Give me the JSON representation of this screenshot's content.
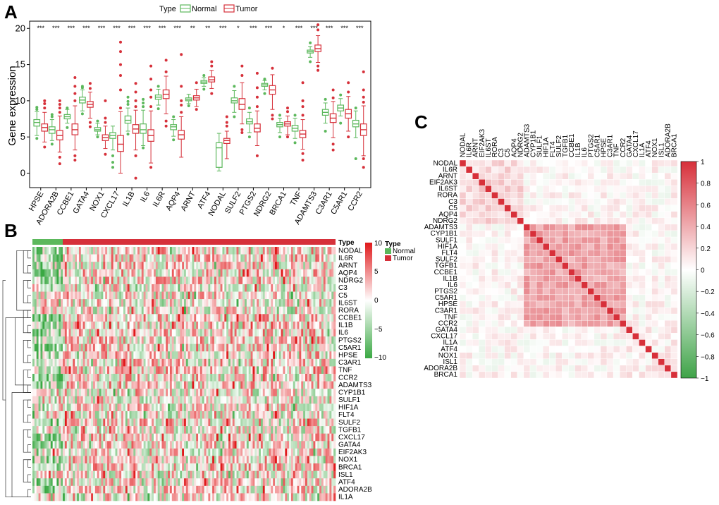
{
  "panels": {
    "a": "A",
    "b": "B",
    "c": "C"
  },
  "colors": {
    "normal": "#5cb85c",
    "tumor": "#d6303a",
    "red_text": "#e0191b",
    "black_text": "#000000"
  },
  "chart_data": [
    {
      "type": "box",
      "id": "A",
      "ylabel": "Gene expression",
      "ylim": [
        -2,
        21
      ],
      "yticks": [
        0,
        5,
        10,
        15,
        20
      ],
      "legend": {
        "title": "Type",
        "items": [
          "Normal",
          "Tumor"
        ],
        "position": "top"
      },
      "genes": [
        "HPSE",
        "ADORA2B",
        "CCBE1",
        "GATA4",
        "NOX1",
        "CXCL17",
        "IL1B",
        "IL6",
        "IL6R",
        "AQP4",
        "ARNT",
        "ATF4",
        "NODAL",
        "SULF2",
        "PTGS2",
        "NDRG2",
        "BRCA1",
        "TNF",
        "ADAMTS3",
        "C3AR1",
        "C5AR1",
        "CCR2"
      ],
      "significance": [
        "***",
        "***",
        "***",
        "***",
        "***",
        "***",
        "***",
        "***",
        "***",
        "***",
        "**",
        "**",
        "***",
        "*",
        "***",
        "***",
        "*",
        "***",
        "***",
        "***",
        "***",
        "***"
      ],
      "normal": [
        {
          "min": 5.2,
          "q1": 6.5,
          "median": 7.0,
          "q3": 7.4,
          "max": 8.5
        },
        {
          "min": 4.5,
          "q1": 5.5,
          "median": 6.0,
          "q3": 6.4,
          "max": 7.4
        },
        {
          "min": 6.9,
          "q1": 7.5,
          "median": 7.8,
          "q3": 8.1,
          "max": 8.8
        },
        {
          "min": 8.6,
          "q1": 9.7,
          "median": 10.1,
          "q3": 10.5,
          "max": 11.5
        },
        {
          "min": 5.3,
          "q1": 5.8,
          "median": 6.0,
          "q3": 6.3,
          "max": 6.9
        },
        {
          "min": 3.2,
          "q1": 4.8,
          "median": 5.2,
          "q3": 5.6,
          "max": 6.5
        },
        {
          "min": 5.8,
          "q1": 6.9,
          "median": 7.3,
          "q3": 7.9,
          "max": 9.0
        },
        {
          "min": 3.8,
          "q1": 5.5,
          "median": 6.0,
          "q3": 6.8,
          "max": 8.7
        },
        {
          "min": 9.4,
          "q1": 10.2,
          "median": 10.5,
          "q3": 10.8,
          "max": 11.6
        },
        {
          "min": 5.1,
          "q1": 6.0,
          "median": 6.4,
          "q3": 6.7,
          "max": 7.4
        },
        {
          "min": 9.6,
          "q1": 10.0,
          "median": 10.2,
          "q3": 10.4,
          "max": 10.9
        },
        {
          "min": 12.0,
          "q1": 12.4,
          "median": 12.6,
          "q3": 12.8,
          "max": 13.2
        },
        {
          "min": 0.3,
          "q1": 0.8,
          "median": 3.5,
          "q3": 4.2,
          "max": 5.5
        },
        {
          "min": 8.4,
          "q1": 9.7,
          "median": 10.0,
          "q3": 10.4,
          "max": 11.4
        },
        {
          "min": 5.6,
          "q1": 6.8,
          "median": 7.1,
          "q3": 7.5,
          "max": 8.4
        },
        {
          "min": 11.5,
          "q1": 12.0,
          "median": 12.2,
          "q3": 12.4,
          "max": 12.8
        },
        {
          "min": 5.6,
          "q1": 6.4,
          "median": 6.7,
          "q3": 7.0,
          "max": 7.6
        },
        {
          "min": 4.8,
          "q1": 5.8,
          "median": 6.2,
          "q3": 6.6,
          "max": 7.6
        },
        {
          "min": 16.0,
          "q1": 16.6,
          "median": 16.8,
          "q3": 17.0,
          "max": 17.5
        },
        {
          "min": 6.9,
          "q1": 8.0,
          "median": 8.4,
          "q3": 8.8,
          "max": 9.7
        },
        {
          "min": 7.9,
          "q1": 8.6,
          "median": 9.0,
          "q3": 9.4,
          "max": 10.3
        },
        {
          "min": 4.9,
          "q1": 6.4,
          "median": 6.8,
          "q3": 7.3,
          "max": 8.6
        }
      ],
      "tumor": [
        {
          "min": 4.3,
          "q1": 5.8,
          "median": 6.3,
          "q3": 6.8,
          "max": 8.4
        },
        {
          "min": 2.9,
          "q1": 4.6,
          "median": 5.2,
          "q3": 5.9,
          "max": 7.9
        },
        {
          "min": 3.2,
          "q1": 5.3,
          "median": 6.0,
          "q3": 6.8,
          "max": 9.3
        },
        {
          "min": 7.6,
          "q1": 9.1,
          "median": 9.5,
          "q3": 9.9,
          "max": 11.2
        },
        {
          "min": 3.4,
          "q1": 4.5,
          "median": 4.9,
          "q3": 5.3,
          "max": 6.5
        },
        {
          "min": 0.0,
          "q1": 3.0,
          "median": 4.0,
          "q3": 5.2,
          "max": 8.5
        },
        {
          "min": 3.2,
          "q1": 5.5,
          "median": 6.1,
          "q3": 6.7,
          "max": 8.7
        },
        {
          "min": 1.4,
          "q1": 4.4,
          "median": 5.2,
          "q3": 6.0,
          "max": 8.6
        },
        {
          "min": 8.2,
          "q1": 10.3,
          "median": 10.9,
          "q3": 11.5,
          "max": 13.4
        },
        {
          "min": 2.2,
          "q1": 4.7,
          "median": 5.3,
          "q3": 5.9,
          "max": 7.8
        },
        {
          "min": 9.2,
          "q1": 10.1,
          "median": 10.4,
          "q3": 10.7,
          "max": 11.6
        },
        {
          "min": 11.7,
          "q1": 12.6,
          "median": 12.9,
          "q3": 13.3,
          "max": 14.2
        },
        {
          "min": 2.0,
          "q1": 4.1,
          "median": 4.5,
          "q3": 4.8,
          "max": 5.8
        },
        {
          "min": 6.8,
          "q1": 8.8,
          "median": 9.5,
          "q3": 10.3,
          "max": 12.5
        },
        {
          "min": 3.8,
          "q1": 5.7,
          "median": 6.2,
          "q3": 6.8,
          "max": 8.6
        },
        {
          "min": 8.8,
          "q1": 10.9,
          "median": 11.5,
          "q3": 12.1,
          "max": 13.6
        },
        {
          "min": 5.3,
          "q1": 6.5,
          "median": 6.8,
          "q3": 7.1,
          "max": 7.9
        },
        {
          "min": 3.3,
          "q1": 4.9,
          "median": 5.4,
          "q3": 5.9,
          "max": 7.4
        },
        {
          "min": 15.3,
          "q1": 16.8,
          "median": 17.2,
          "q3": 17.7,
          "max": 19.0
        },
        {
          "min": 4.9,
          "q1": 7.0,
          "median": 7.6,
          "q3": 8.2,
          "max": 9.9
        },
        {
          "min": 5.8,
          "q1": 7.6,
          "median": 8.2,
          "q3": 8.8,
          "max": 10.6
        },
        {
          "min": 2.4,
          "q1": 5.2,
          "median": 6.0,
          "q3": 6.8,
          "max": 9.3
        }
      ],
      "normal_outliers": [
        [
          8.8,
          9.1,
          4.8
        ],
        [
          7.8,
          8.1,
          4.0
        ],
        [
          9.0,
          6.3
        ],
        [
          12.0,
          11.8,
          8.2
        ],
        [
          7.2,
          5.0
        ],
        [
          2.4,
          1.5,
          0.8
        ],
        [
          9.5,
          9.9,
          10.5,
          5.4
        ],
        [
          9.2,
          9.7,
          10.2,
          3.5
        ],
        [
          12.0,
          8.9
        ],
        [
          7.8,
          4.6
        ],
        [
          9.3
        ],
        [
          13.5,
          11.6
        ],
        [],
        [
          7.8,
          12.0
        ],
        [
          9.0,
          5.0
        ],
        [
          13.0,
          11.0
        ],
        [
          8.0,
          5.0
        ],
        [
          8.0,
          4.2
        ],
        [
          15.4,
          18.0
        ],
        [
          10.2,
          5.8
        ],
        [
          10.8,
          6.9
        ],
        [
          2.0,
          9.0
        ]
      ],
      "tumor_outliers": [
        [
          9.0,
          9.6,
          10.0,
          3.6
        ],
        [
          8.4,
          9.0,
          9.5,
          10.0,
          2.2,
          1.3
        ],
        [
          10.0,
          11.0,
          12.0,
          13.2,
          2.4,
          1.8
        ],
        [
          11.7,
          12.4,
          7.0,
          6.4
        ],
        [
          7.0,
          7.6,
          10.0,
          2.6
        ],
        [
          9.0,
          11.5,
          13.5,
          15.0,
          16.8,
          18.1
        ],
        [
          9.2,
          10.0,
          11.2,
          12.4,
          2.4,
          -0.7
        ],
        [
          9.2,
          10.5,
          11.5,
          13.0,
          14.8,
          0.8
        ],
        [
          14.0,
          15.6,
          7.2,
          6.5
        ],
        [
          8.4,
          9.4,
          10.0,
          12.0,
          16.4
        ],
        [
          12.5,
          8.8
        ],
        [
          14.8,
          15.4,
          11.0
        ],
        [
          6.5,
          7.0,
          7.8
        ],
        [
          13.5,
          14.8,
          6.0,
          5.6
        ],
        [
          9.2,
          10.5,
          11.8,
          13.8,
          2.4
        ],
        [
          14.5,
          8.0,
          7.5
        ],
        [
          8.5,
          9.0,
          5.0
        ],
        [
          8.0,
          9.2,
          10.0,
          12.5,
          2.7,
          1.8
        ],
        [
          19.8,
          20.5,
          14.8,
          14.2
        ],
        [
          10.4,
          11.5,
          4.0,
          3.2
        ],
        [
          11.2,
          12.5,
          5.0
        ],
        [
          9.8,
          10.5,
          11.5,
          14.0,
          2.0,
          0.8
        ]
      ]
    },
    {
      "type": "heatmap",
      "id": "B",
      "annotation_label": "Type",
      "legend_title": "Type",
      "legend_items": [
        "Normal",
        "Tumor"
      ],
      "scale_ticks": [
        "10",
        "5",
        "0",
        "−5",
        "−10"
      ],
      "rows": [
        "NODAL",
        "IL6R",
        "ARNT",
        "AQP4",
        "NDRG2",
        "C3",
        "C5",
        "IL6ST",
        "RORA",
        "CCBE1",
        "IL1B",
        "IL6",
        "PTGS2",
        "C5AR1",
        "HPSE",
        "C3AR1",
        "TNF",
        "CCR2",
        "ADAMTS3",
        "CYP1B1",
        "SULF1",
        "HIF1A",
        "FLT4",
        "SULF2",
        "TGFB1",
        "CXCL17",
        "GATA4",
        "EIF2AK3",
        "NOX1",
        "BRCA1",
        "ISL1",
        "ATF4",
        "ADORA2B",
        "IL1A"
      ],
      "row_colors": [
        "red",
        "red",
        "red",
        "red",
        "red",
        "black",
        "black",
        "black",
        "black",
        "red",
        "red",
        "red",
        "red",
        "red",
        "red",
        "red",
        "red",
        "red",
        "red",
        "black",
        "black",
        "black",
        "black",
        "red",
        "black",
        "red",
        "red",
        "black",
        "red",
        "red",
        "black",
        "red",
        "red",
        "black"
      ],
      "normal_fraction": 0.1
    },
    {
      "type": "correlation",
      "id": "C",
      "genes": [
        "NODAL",
        "IL6R",
        "ARNT",
        "EIF2AK3",
        "IL6ST",
        "RORA",
        "C3",
        "C5",
        "AQP4",
        "NDRG2",
        "ADAMTS3",
        "CYP1B1",
        "SULF1",
        "HIF1A",
        "FLT4",
        "SULF2",
        "TGFB1",
        "CCBE1",
        "IL1B",
        "IL6",
        "PTGS2",
        "C5AR1",
        "HPSE",
        "C3AR1",
        "TNF",
        "CCR2",
        "GATA4",
        "CXCL17",
        "IL1A",
        "ATF4",
        "NOX1",
        "ISL1",
        "ADORA2B",
        "BRCA1"
      ],
      "scale_ticks": [
        "1",
        "0.8",
        "0.6",
        "0.4",
        "0.2",
        "0",
        "−0.2",
        "−0.4",
        "−0.6",
        "−0.8",
        "−1"
      ],
      "clusters": [
        {
          "start": 0,
          "end": 9,
          "within": 0.18
        },
        {
          "start": 10,
          "end": 25,
          "within": 0.42
        },
        {
          "start": 26,
          "end": 33,
          "within": 0.05
        }
      ]
    }
  ]
}
